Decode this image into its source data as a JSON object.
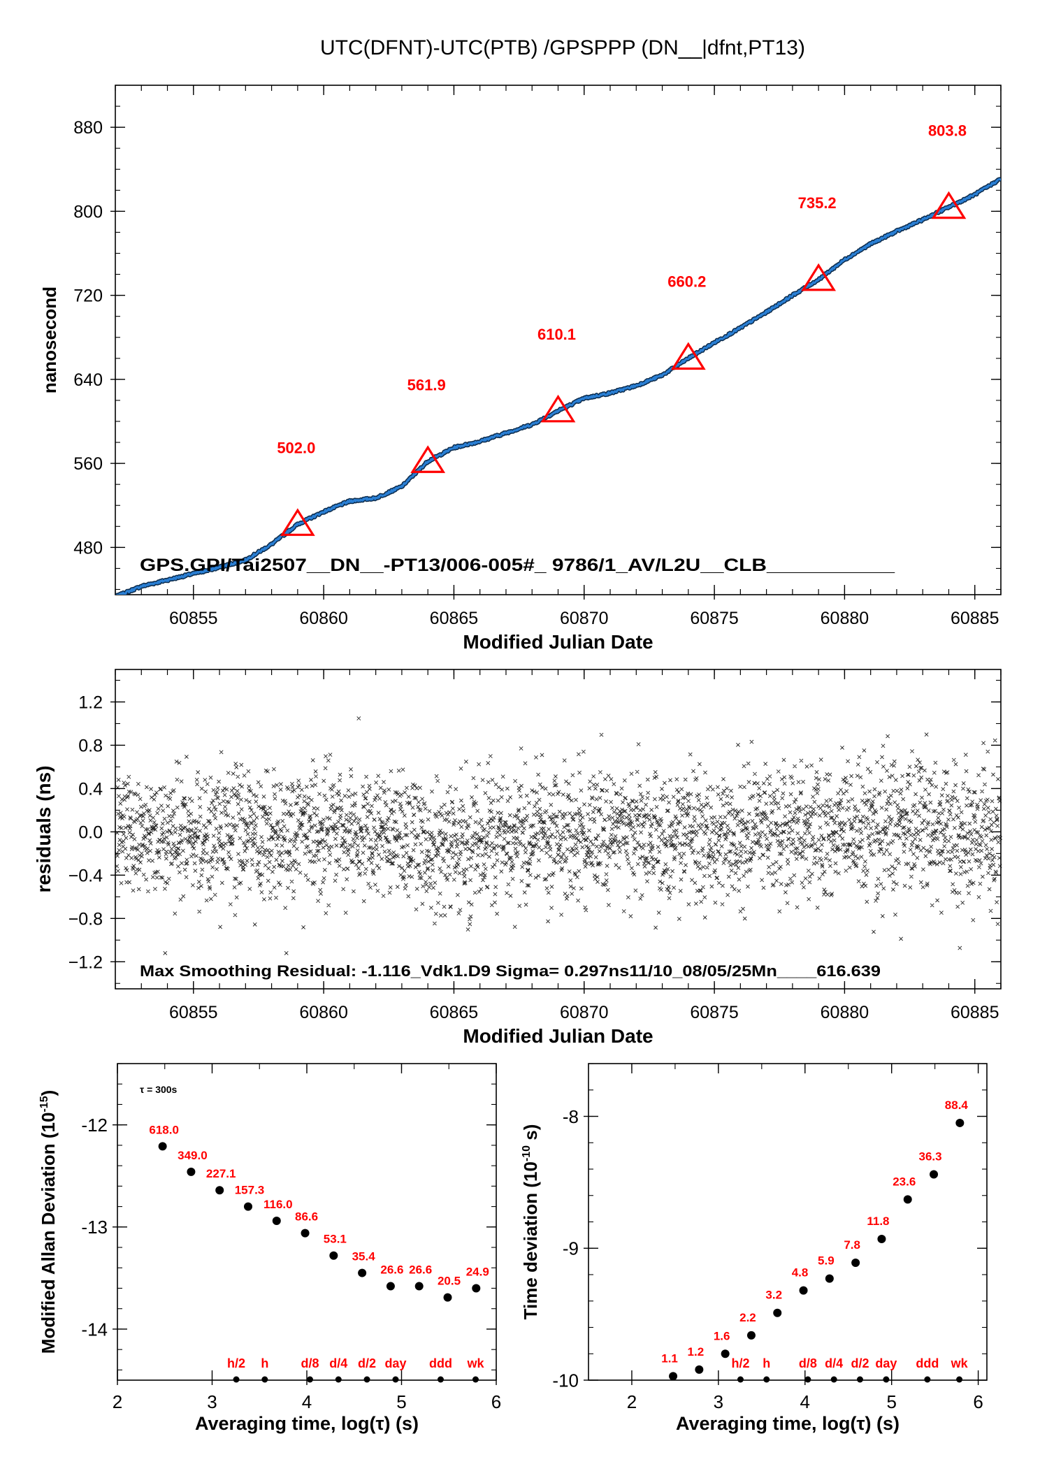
{
  "page_title": "UTC(DFNT)-UTC(PTB)  /GPSPPP  (DN__|dfnt,PT13)",
  "colors": {
    "series": "#2a7fd4",
    "marker": "#ff0000",
    "label": "#ff0000",
    "ink": "#000000"
  },
  "chart_data": [
    {
      "id": "top",
      "type": "line",
      "xlabel": "Modified Julian Date",
      "ylabel": "nanosecond",
      "xlim": [
        60852,
        60886
      ],
      "ylim": [
        435,
        920
      ],
      "xticks": [
        60855,
        60860,
        60865,
        60870,
        60875,
        60880,
        60885
      ],
      "yticks": [
        480,
        560,
        640,
        720,
        800,
        880
      ],
      "series_points": [
        [
          60852,
          433
        ],
        [
          60853,
          443
        ],
        [
          60854,
          449
        ],
        [
          60855,
          455
        ],
        [
          60856,
          461
        ],
        [
          60857,
          468
        ],
        [
          60858,
          483
        ],
        [
          60859,
          502
        ],
        [
          60860,
          514
        ],
        [
          60861,
          524
        ],
        [
          60862,
          527
        ],
        [
          60863,
          538
        ],
        [
          60864,
          562
        ],
        [
          60865,
          575
        ],
        [
          60866,
          581
        ],
        [
          60867,
          589
        ],
        [
          60868,
          597
        ],
        [
          60869,
          610
        ],
        [
          60870,
          622
        ],
        [
          60871,
          627
        ],
        [
          60872,
          634
        ],
        [
          60873,
          644
        ],
        [
          60874,
          660
        ],
        [
          60875,
          675
        ],
        [
          60876,
          689
        ],
        [
          60877,
          704
        ],
        [
          60878,
          720
        ],
        [
          60879,
          735
        ],
        [
          60880,
          754
        ],
        [
          60881,
          769
        ],
        [
          60882,
          781
        ],
        [
          60883,
          792
        ],
        [
          60884,
          804
        ],
        [
          60885,
          816
        ],
        [
          60886,
          831
        ]
      ],
      "markers": [
        {
          "x": 60859,
          "y": 502.0,
          "label": "502.0"
        },
        {
          "x": 60864,
          "y": 561.9,
          "label": "561.9"
        },
        {
          "x": 60869,
          "y": 610.1,
          "label": "610.1"
        },
        {
          "x": 60874,
          "y": 660.2,
          "label": "660.2"
        },
        {
          "x": 60879,
          "y": 735.2,
          "label": "735.2"
        },
        {
          "x": 60884,
          "y": 803.8,
          "label": "803.8"
        }
      ],
      "annotation": "GPS.GPI/Tai2507__DN__-PT13/006-005#_  9786/1_AV/L2U__CLB___________"
    },
    {
      "id": "middle",
      "type": "scatter",
      "xlabel": "Modified Julian Date",
      "ylabel": "residuals (ns)",
      "xlim": [
        60852,
        60886
      ],
      "ylim": [
        -1.45,
        1.5
      ],
      "xticks": [
        60855,
        60860,
        60865,
        60870,
        60875,
        60880,
        60885
      ],
      "yticks": [
        -1.2,
        -0.8,
        -0.4,
        0.0,
        0.4,
        0.8,
        1.2
      ],
      "ytick_labels": [
        "−1.2",
        "−0.8",
        "−0.4",
        "0.0",
        "0.4",
        "0.8",
        "1.2"
      ],
      "sigma_ns": 0.297,
      "max_residual_ns": -1.116,
      "point_spacing_days": 0.00347,
      "annotation": "Max Smoothing Residual: -1.116_Vdk1.D9  Sigma= 0.297ns11/10_08/05/25Mn____616.639"
    },
    {
      "id": "mdev",
      "type": "scatter",
      "xlabel": "Averaging time, log(τ) (s)",
      "ylabel": "Modified Allan Deviation (10",
      "ylabel_exp": "-15",
      "ylabel_close": ")",
      "xlim": [
        2,
        6
      ],
      "ylim": [
        -14.5,
        -11.4
      ],
      "xticks": [
        2,
        3,
        4,
        5,
        6
      ],
      "yticks": [
        -14,
        -13,
        -12
      ],
      "tau_note": "τ = 300s",
      "points": [
        {
          "x": 2.477,
          "y": -12.21,
          "label": "618.0"
        },
        {
          "x": 2.778,
          "y": -12.46,
          "label": "349.0"
        },
        {
          "x": 3.079,
          "y": -12.64,
          "label": "227.1"
        },
        {
          "x": 3.38,
          "y": -12.8,
          "label": "157.3"
        },
        {
          "x": 3.681,
          "y": -12.94,
          "label": "116.0"
        },
        {
          "x": 3.982,
          "y": -13.06,
          "label": "86.6"
        },
        {
          "x": 4.283,
          "y": -13.28,
          "label": "53.1"
        },
        {
          "x": 4.584,
          "y": -13.45,
          "label": "35.4"
        },
        {
          "x": 4.885,
          "y": -13.58,
          "label": "26.6"
        },
        {
          "x": 5.186,
          "y": -13.58,
          "label": "26.6"
        },
        {
          "x": 5.487,
          "y": -13.69,
          "label": "20.5"
        },
        {
          "x": 5.788,
          "y": -13.6,
          "label": "24.9"
        }
      ],
      "reference_marks": [
        {
          "x": 3.255,
          "label": "h/2"
        },
        {
          "x": 3.556,
          "label": "h"
        },
        {
          "x": 4.033,
          "label": "d/8"
        },
        {
          "x": 4.334,
          "label": "d/4"
        },
        {
          "x": 4.635,
          "label": "d/2"
        },
        {
          "x": 4.937,
          "label": "day"
        },
        {
          "x": 5.413,
          "label": "ddd"
        },
        {
          "x": 5.782,
          "label": "wk"
        }
      ]
    },
    {
      "id": "tdev",
      "type": "scatter",
      "xlabel": "Averaging time, log(τ) (s)",
      "ylabel": "Time deviation (10",
      "ylabel_exp": "-10",
      "ylabel_close": " s)",
      "xlim": [
        1.5,
        6.1
      ],
      "ylim": [
        -10,
        -7.6
      ],
      "xticks": [
        2,
        3,
        4,
        5,
        6
      ],
      "yticks": [
        -10,
        -9,
        -8
      ],
      "points": [
        {
          "x": 2.477,
          "y": -9.97,
          "label": "1.1"
        },
        {
          "x": 2.778,
          "y": -9.92,
          "label": "1.2"
        },
        {
          "x": 3.079,
          "y": -9.8,
          "label": "1.6"
        },
        {
          "x": 3.38,
          "y": -9.66,
          "label": "2.2"
        },
        {
          "x": 3.681,
          "y": -9.49,
          "label": "3.2"
        },
        {
          "x": 3.982,
          "y": -9.32,
          "label": "4.8"
        },
        {
          "x": 4.283,
          "y": -9.23,
          "label": "5.9"
        },
        {
          "x": 4.584,
          "y": -9.11,
          "label": "7.8"
        },
        {
          "x": 4.885,
          "y": -8.93,
          "label": "11.8"
        },
        {
          "x": 5.186,
          "y": -8.63,
          "label": "23.6"
        },
        {
          "x": 5.487,
          "y": -8.44,
          "label": "36.3"
        },
        {
          "x": 5.788,
          "y": -8.05,
          "label": "88.4"
        }
      ],
      "reference_marks": [
        {
          "x": 3.255,
          "label": "h/2"
        },
        {
          "x": 3.556,
          "label": "h"
        },
        {
          "x": 4.033,
          "label": "d/8"
        },
        {
          "x": 4.334,
          "label": "d/4"
        },
        {
          "x": 4.635,
          "label": "d/2"
        },
        {
          "x": 4.937,
          "label": "day"
        },
        {
          "x": 5.413,
          "label": "ddd"
        },
        {
          "x": 5.782,
          "label": "wk"
        }
      ]
    }
  ]
}
